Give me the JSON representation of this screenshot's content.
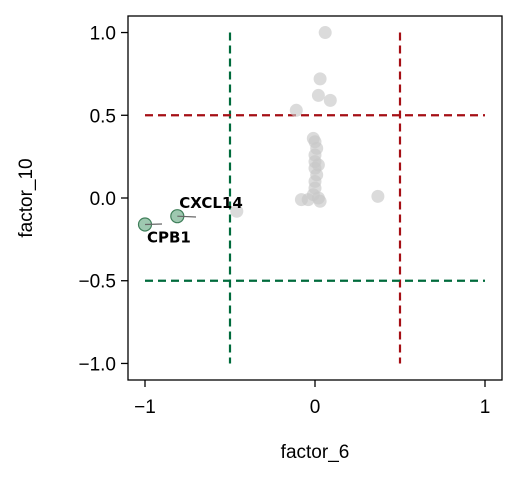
{
  "chart_data": {
    "type": "scatter",
    "xlabel": "factor_6",
    "ylabel": "factor_10",
    "xlim": [
      -1.1,
      1.1
    ],
    "ylim": [
      -1.1,
      1.1
    ],
    "xticks": [
      {
        "value": -1,
        "label": "−1"
      },
      {
        "value": 0,
        "label": "0"
      },
      {
        "value": 1,
        "label": "1"
      }
    ],
    "yticks": [
      {
        "value": 1.0,
        "label": "1.0"
      },
      {
        "value": 0.5,
        "label": "0.5"
      },
      {
        "value": 0.0,
        "label": "0.0"
      },
      {
        "value": -0.5,
        "label": "−0.5"
      },
      {
        "value": -1.0,
        "label": "−1.0"
      }
    ],
    "grid": false,
    "threshold_lines": [
      {
        "orientation": "vertical",
        "value": -0.5,
        "color": "#006b3c",
        "style": "dashed"
      },
      {
        "orientation": "vertical",
        "value": 0.5,
        "color": "#a50f15",
        "style": "dashed"
      },
      {
        "orientation": "horizontal",
        "value": 0.5,
        "color": "#a50f15",
        "style": "dashed"
      },
      {
        "orientation": "horizontal",
        "value": -0.5,
        "color": "#006b3c",
        "style": "dashed"
      }
    ],
    "series": [
      {
        "color": "#c8c8c8",
        "points": [
          {
            "x": 0.06,
            "y": 1.0
          },
          {
            "x": 0.03,
            "y": 0.72
          },
          {
            "x": 0.02,
            "y": 0.62
          },
          {
            "x": 0.09,
            "y": 0.59
          },
          {
            "x": -0.11,
            "y": 0.53
          },
          {
            "x": -0.01,
            "y": 0.36
          },
          {
            "x": 0.0,
            "y": 0.34
          },
          {
            "x": 0.01,
            "y": 0.3
          },
          {
            "x": 0.0,
            "y": 0.26
          },
          {
            "x": 0.0,
            "y": 0.22
          },
          {
            "x": 0.0,
            "y": 0.18
          },
          {
            "x": 0.02,
            "y": 0.2
          },
          {
            "x": 0.01,
            "y": 0.14
          },
          {
            "x": 0.0,
            "y": 0.1
          },
          {
            "x": 0.0,
            "y": 0.06
          },
          {
            "x": -0.01,
            "y": 0.02
          },
          {
            "x": 0.02,
            "y": 0.0
          },
          {
            "x": -0.04,
            "y": -0.01
          },
          {
            "x": -0.08,
            "y": -0.01
          },
          {
            "x": 0.03,
            "y": -0.02
          },
          {
            "x": 0.37,
            "y": 0.01
          },
          {
            "x": -0.46,
            "y": -0.08
          }
        ]
      },
      {
        "color": "#6aaa85",
        "points": [
          {
            "x": -1.0,
            "y": -0.16,
            "label": "CPB1"
          },
          {
            "x": -0.81,
            "y": -0.11,
            "label": "CXCL14"
          }
        ]
      }
    ]
  }
}
